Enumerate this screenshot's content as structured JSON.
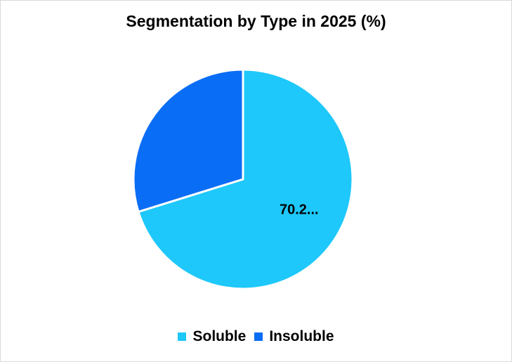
{
  "chart_data": {
    "type": "pie",
    "title": "Segmentation by Type in 2025 (%)",
    "categories": [
      "Soluble",
      "Insoluble"
    ],
    "values": [
      70.2,
      29.8
    ],
    "colors": [
      "#1ec8fa",
      "#0a6df5"
    ],
    "data_labels": [
      "70.2...",
      ""
    ],
    "legend_position": "bottom",
    "start_angle": "12 o'clock",
    "direction": "clockwise"
  }
}
